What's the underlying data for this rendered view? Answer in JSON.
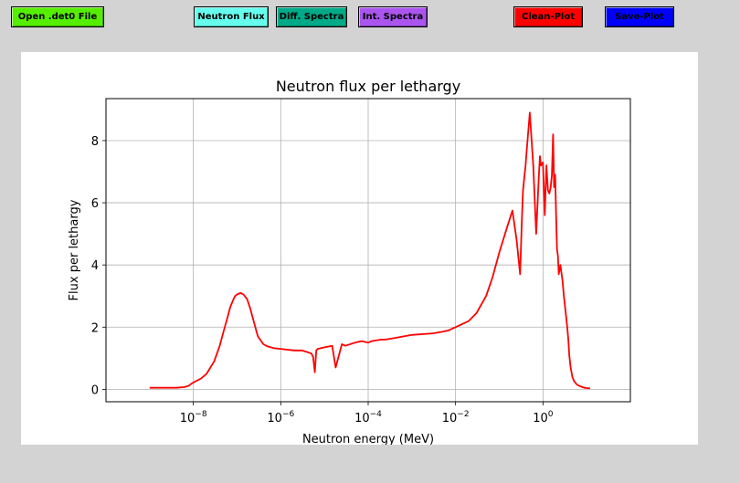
{
  "toolbar": {
    "open_label": "Open .det0 File",
    "flux_label": "Neutron Flux",
    "diff_label": "Diff. Spectra",
    "int_label": "Int. Spectra",
    "clean_label": "Clean-Plot",
    "save_label": "Save-Plot",
    "colors": {
      "open": "#55ee00",
      "flux": "#66ffee",
      "diff": "#00aa88",
      "int": "#aa55ee",
      "clean": "#ff0000",
      "save": "#0000ff"
    }
  },
  "chart_data": {
    "type": "line",
    "title": "Neutron flux per lethargy",
    "xlabel": "Neutron energy (MeV)",
    "ylabel": "Flux per lethargy",
    "x_scale": "log",
    "xlim": [
      1e-10,
      100
    ],
    "ylim": [
      -0.4,
      9.35
    ],
    "grid": true,
    "x_ticks": [
      "1e-8",
      "1e-6",
      "1e-4",
      "1e-2",
      "1e0"
    ],
    "y_ticks": [
      0,
      2,
      4,
      6,
      8
    ],
    "line_color": "#ff0000",
    "series": [
      {
        "x": [
          1e-09,
          2e-09,
          3e-09,
          4e-09,
          5e-09,
          6e-09,
          7e-09,
          8e-09,
          9e-09,
          1e-08,
          1.5e-08,
          2e-08,
          3e-08,
          4e-08,
          5e-08,
          6e-08,
          7e-08,
          8e-08,
          9e-08,
          1e-07,
          1.2e-07,
          1.4e-07,
          1.7e-07,
          2e-07,
          2.5e-07,
          3e-07,
          4e-07,
          5e-07,
          7e-07,
          1e-06,
          2e-06,
          3e-06,
          4e-06,
          5e-06,
          5.5e-06,
          6e-06,
          6.5e-06,
          7e-06,
          1e-05,
          1.5e-05,
          1.8e-05,
          2.5e-05,
          3e-05,
          5e-05,
          7e-05,
          0.0001,
          0.00012,
          0.0002,
          0.00025,
          0.0004,
          0.001,
          0.003,
          0.005,
          0.007,
          0.01,
          0.012,
          0.02,
          0.03,
          0.05,
          0.07,
          0.1,
          0.15,
          0.2,
          0.25,
          0.3,
          0.33,
          0.35,
          0.38,
          0.4,
          0.42,
          0.45,
          0.5,
          0.6,
          0.7,
          0.8,
          0.85,
          0.9,
          1.0,
          1.1,
          1.2,
          1.3,
          1.4,
          1.5,
          1.6,
          1.7,
          1.8,
          1.9,
          2.0,
          2.1,
          2.2,
          2.3,
          2.5,
          2.8,
          3.0,
          3.3,
          3.6,
          3.8,
          4.0,
          4.3,
          4.7,
          5.2,
          6,
          7,
          8,
          9,
          10,
          12
        ],
        "y": [
          0.05,
          0.05,
          0.05,
          0.05,
          0.06,
          0.07,
          0.09,
          0.12,
          0.18,
          0.22,
          0.35,
          0.5,
          0.9,
          1.4,
          1.9,
          2.3,
          2.65,
          2.85,
          3.0,
          3.05,
          3.1,
          3.05,
          2.9,
          2.6,
          2.1,
          1.7,
          1.45,
          1.38,
          1.32,
          1.3,
          1.25,
          1.25,
          1.2,
          1.15,
          1.05,
          0.55,
          1.25,
          1.3,
          1.35,
          1.4,
          0.7,
          1.45,
          1.4,
          1.5,
          1.55,
          1.5,
          1.55,
          1.6,
          1.6,
          1.65,
          1.75,
          1.8,
          1.85,
          1.9,
          2.0,
          2.05,
          2.2,
          2.45,
          3.0,
          3.6,
          4.4,
          5.2,
          5.75,
          4.8,
          3.7,
          5.5,
          6.4,
          6.9,
          7.2,
          7.6,
          8.1,
          8.9,
          7.2,
          5.0,
          6.8,
          7.5,
          7.2,
          7.3,
          5.6,
          7.2,
          6.4,
          6.3,
          6.5,
          6.9,
          8.2,
          6.5,
          6.9,
          5.6,
          4.5,
          4.3,
          3.7,
          4.0,
          3.5,
          3.0,
          2.5,
          2.0,
          1.6,
          1.1,
          0.7,
          0.4,
          0.25,
          0.15,
          0.1,
          0.07,
          0.05,
          0.04,
          0.03
        ]
      }
    ]
  }
}
